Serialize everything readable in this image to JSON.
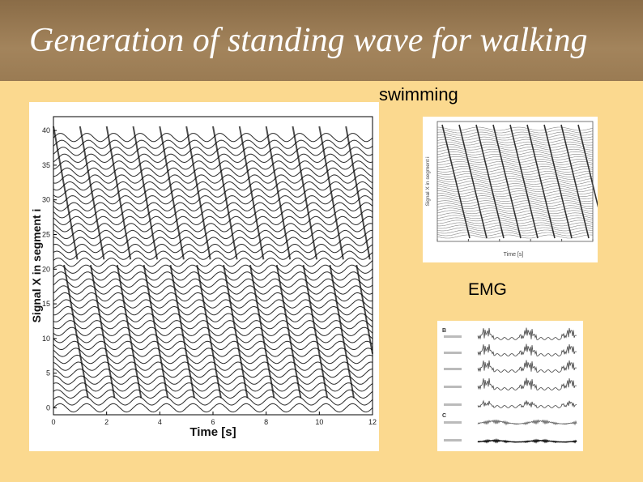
{
  "slide": {
    "title": "Generation of standing wave for walking",
    "swimming_label": "swimming",
    "emg_label": "EMG"
  },
  "figures": {
    "walking_plot": {
      "xlabel": "Time [s]",
      "ylabel": "Signal X in segment i",
      "x_ticks": [
        "0",
        "2",
        "4",
        "6",
        "8",
        "10",
        "12"
      ],
      "y_ticks": [
        "0",
        "5",
        "10",
        "15",
        "20",
        "25",
        "30",
        "35",
        "40"
      ],
      "xlim": [
        0,
        12
      ],
      "ylim": [
        -1,
        42
      ],
      "line_count": 40
    },
    "swimming_plot": {
      "xlabel": "Time [s]",
      "ylabel": "Signal X in segment i"
    },
    "emg_plot": {
      "panel_labels": [
        "B",
        "C"
      ]
    }
  }
}
